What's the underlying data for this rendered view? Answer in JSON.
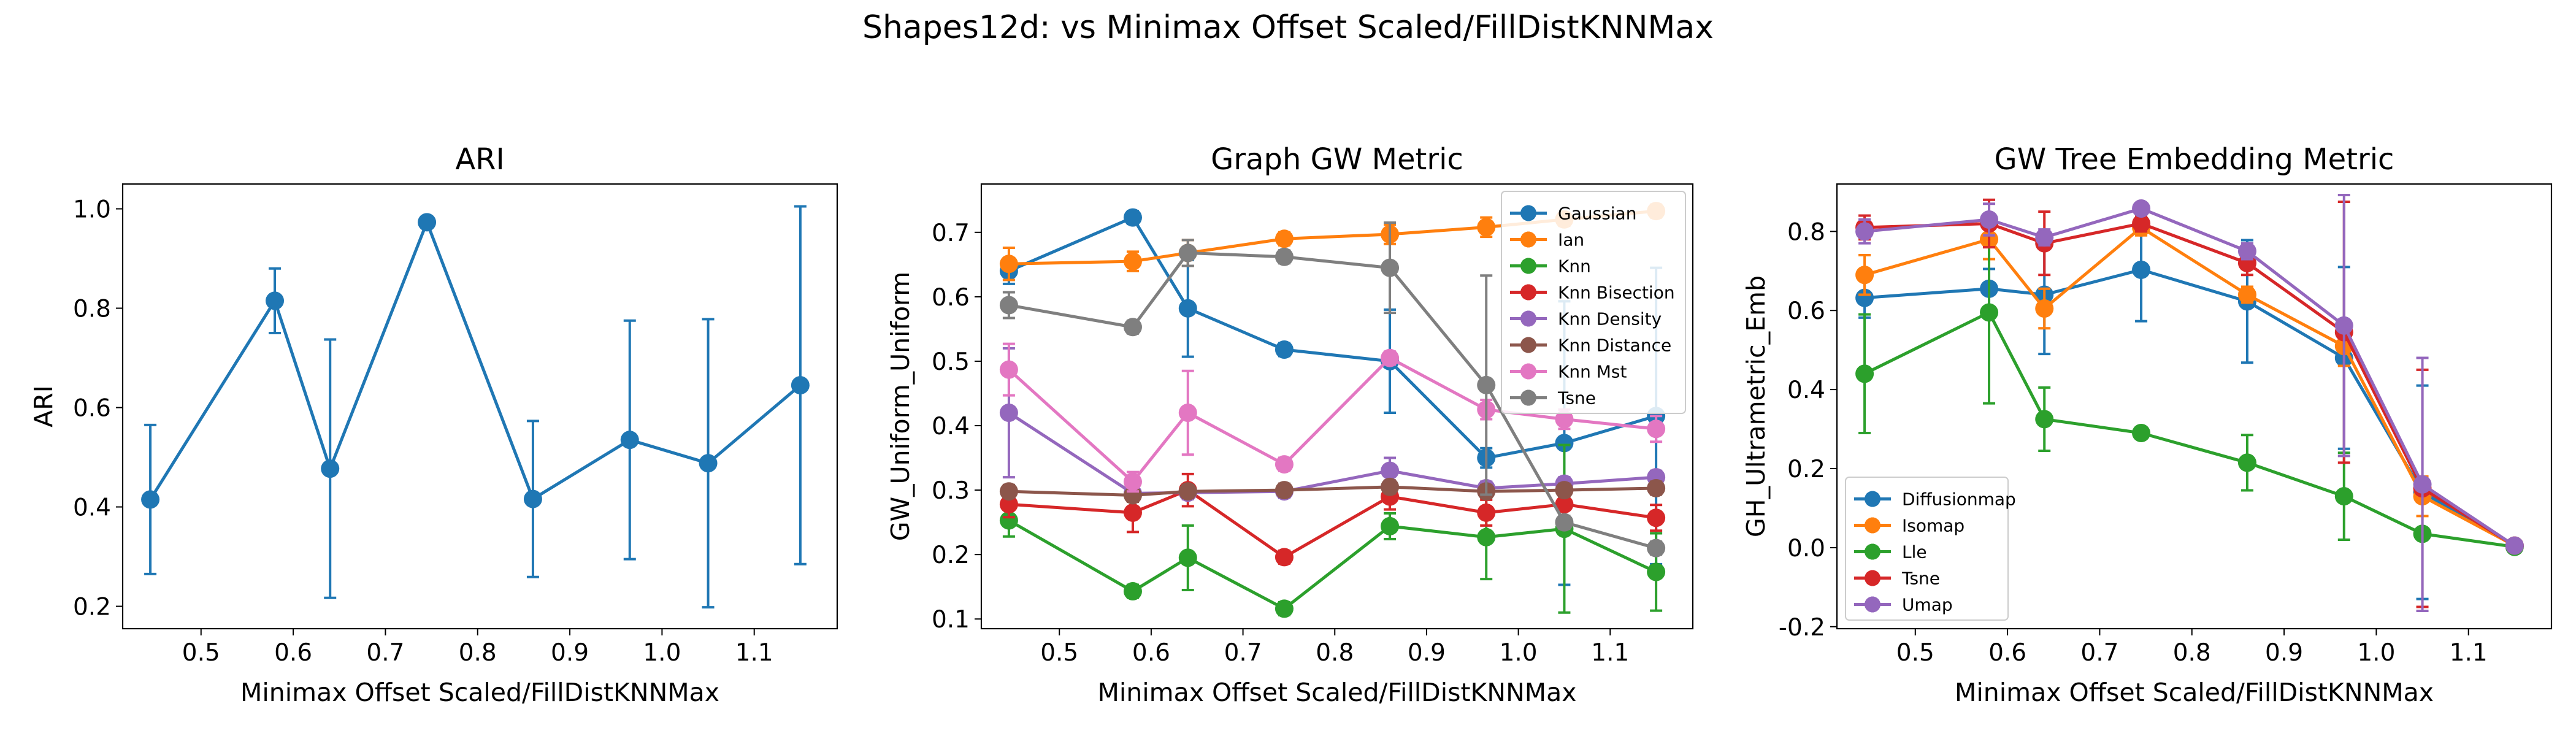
{
  "figure": {
    "title": "Shapes12d: vs Minimax Offset Scaled/FillDistKNNMax"
  },
  "colors": {
    "blue": "#1f77b4",
    "orange": "#ff7f0e",
    "green": "#2ca02c",
    "red": "#d62728",
    "purple": "#9467bd",
    "brown": "#8c564b",
    "pink": "#e377c2",
    "gray": "#7f7f7f"
  },
  "chart_data": [
    {
      "type": "line",
      "title": "ARI",
      "xlabel": "Minimax Offset Scaled/FillDistKNNMax",
      "ylabel": "ARI",
      "xlim": [
        0.415,
        1.19
      ],
      "ylim": [
        0.155,
        1.05
      ],
      "xticks": [
        0.5,
        0.6,
        0.7,
        0.8,
        0.9,
        1.0,
        1.1
      ],
      "yticks": [
        0.2,
        0.4,
        0.6,
        0.8,
        1.0
      ],
      "grid": false,
      "legend": null,
      "x": [
        0.445,
        0.58,
        0.64,
        0.745,
        0.86,
        0.965,
        1.05,
        1.15
      ],
      "series": [
        {
          "color": "#1f77b4",
          "values": [
            0.415,
            0.815,
            0.477,
            0.973,
            0.416,
            0.535,
            0.488,
            0.645
          ],
          "err": [
            0.15,
            0.065,
            0.26,
            0.005,
            0.157,
            0.24,
            0.29,
            0.36
          ]
        }
      ]
    },
    {
      "type": "line",
      "title": "Graph GW Metric",
      "xlabel": "Minimax Offset Scaled/FillDistKNNMax",
      "ylabel": "GW_Uniform_Uniform",
      "xlim": [
        0.415,
        1.19
      ],
      "ylim": [
        0.085,
        0.775
      ],
      "xticks": [
        0.5,
        0.6,
        0.7,
        0.8,
        0.9,
        1.0,
        1.1
      ],
      "yticks": [
        0.1,
        0.2,
        0.3,
        0.4,
        0.5,
        0.6,
        0.7
      ],
      "grid": false,
      "legend": "upper right",
      "x": [
        0.445,
        0.58,
        0.64,
        0.745,
        0.86,
        0.965,
        1.05,
        1.15
      ],
      "series": [
        {
          "name": "Gaussian",
          "color": "#1f77b4",
          "values": [
            0.64,
            0.723,
            0.582,
            0.518,
            0.5,
            0.35,
            0.373,
            0.415
          ],
          "err": [
            0.02,
            0.01,
            0.075,
            0.01,
            0.08,
            0.015,
            0.22,
            0.23
          ]
        },
        {
          "name": "Ian",
          "color": "#ff7f0e",
          "values": [
            0.651,
            0.655,
            0.668,
            0.69,
            0.697,
            0.708,
            0.72,
            0.733
          ],
          "err": [
            0.025,
            0.015,
            0.02,
            0.01,
            0.015,
            0.015,
            0.01,
            0.01
          ]
        },
        {
          "name": "Knn",
          "color": "#2ca02c",
          "values": [
            0.253,
            0.143,
            0.195,
            0.116,
            0.244,
            0.227,
            0.24,
            0.173
          ],
          "err": [
            0.025,
            0.01,
            0.05,
            0.01,
            0.02,
            0.065,
            0.13,
            0.06
          ]
        },
        {
          "name": "Knn Bisection",
          "color": "#d62728",
          "values": [
            0.278,
            0.265,
            0.3,
            0.196,
            0.29,
            0.265,
            0.278,
            0.257
          ],
          "err": [
            0.02,
            0.03,
            0.025,
            0.01,
            0.02,
            0.02,
            0.02,
            0.02
          ]
        },
        {
          "name": "Knn Density",
          "color": "#9467bd",
          "values": [
            0.42,
            0.295,
            0.296,
            0.298,
            0.33,
            0.303,
            0.31,
            0.32
          ],
          "err": [
            0.1,
            0.01,
            0.01,
            0.01,
            0.02,
            0.01,
            0.01,
            0.01
          ]
        },
        {
          "name": "Knn Distance",
          "color": "#8c564b",
          "values": [
            0.298,
            0.292,
            0.298,
            0.3,
            0.305,
            0.298,
            0.3,
            0.303
          ],
          "err": [
            0.01,
            0.01,
            0.01,
            0.01,
            0.01,
            0.01,
            0.01,
            0.01
          ]
        },
        {
          "name": "Knn Mst",
          "color": "#e377c2",
          "values": [
            0.487,
            0.313,
            0.42,
            0.34,
            0.505,
            0.425,
            0.41,
            0.395
          ],
          "err": [
            0.04,
            0.015,
            0.065,
            0.01,
            0.01,
            0.015,
            0.015,
            0.02
          ]
        },
        {
          "name": "Tsne",
          "color": "#7f7f7f",
          "values": [
            0.587,
            0.553,
            0.668,
            0.662,
            0.645,
            0.463,
            0.25,
            0.21
          ],
          "err": [
            0.02,
            0.01,
            0.02,
            0.01,
            0.07,
            0.17,
            0.01,
            0.01
          ]
        }
      ]
    },
    {
      "type": "line",
      "title": "GW Tree Embedding Metric",
      "xlabel": "Minimax Offset Scaled/FillDistKNNMax",
      "ylabel": "GH_Ultrametric_Emb",
      "xlim": [
        0.415,
        1.19
      ],
      "ylim": [
        -0.205,
        0.92
      ],
      "xticks": [
        0.5,
        0.6,
        0.7,
        0.8,
        0.9,
        1.0,
        1.1
      ],
      "yticks": [
        -0.2,
        0.0,
        0.2,
        0.4,
        0.6,
        0.8
      ],
      "grid": false,
      "legend": "lower left",
      "x": [
        0.445,
        0.58,
        0.64,
        0.745,
        0.86,
        0.965,
        1.05,
        1.15
      ],
      "series": [
        {
          "name": "Diffusionmap",
          "color": "#1f77b4",
          "values": [
            0.632,
            0.655,
            0.64,
            0.703,
            0.623,
            0.48,
            0.14,
            0.005
          ],
          "err": [
            0.05,
            0.05,
            0.15,
            0.13,
            0.155,
            0.23,
            0.27,
            0.01
          ]
        },
        {
          "name": "Isomap",
          "color": "#ff7f0e",
          "values": [
            0.69,
            0.78,
            0.605,
            0.81,
            0.64,
            0.51,
            0.13,
            0.005
          ],
          "err": [
            0.05,
            0.05,
            0.05,
            0.02,
            0.02,
            0.05,
            0.05,
            0.01
          ]
        },
        {
          "name": "Lle",
          "color": "#2ca02c",
          "values": [
            0.44,
            0.595,
            0.325,
            0.29,
            0.215,
            0.13,
            0.035,
            0.002
          ],
          "err": [
            0.15,
            0.23,
            0.08,
            0.01,
            0.07,
            0.11,
            0.01,
            0.01
          ]
        },
        {
          "name": "Tsne",
          "color": "#d62728",
          "values": [
            0.81,
            0.82,
            0.77,
            0.82,
            0.72,
            0.545,
            0.15,
            0.005
          ],
          "err": [
            0.03,
            0.06,
            0.08,
            0.02,
            0.03,
            0.33,
            0.3,
            0.01
          ]
        },
        {
          "name": "Umap",
          "color": "#9467bd",
          "values": [
            0.8,
            0.83,
            0.785,
            0.858,
            0.75,
            0.562,
            0.16,
            0.005
          ],
          "err": [
            0.03,
            0.04,
            0.02,
            0.01,
            0.02,
            0.33,
            0.32,
            0.01
          ]
        }
      ]
    }
  ]
}
